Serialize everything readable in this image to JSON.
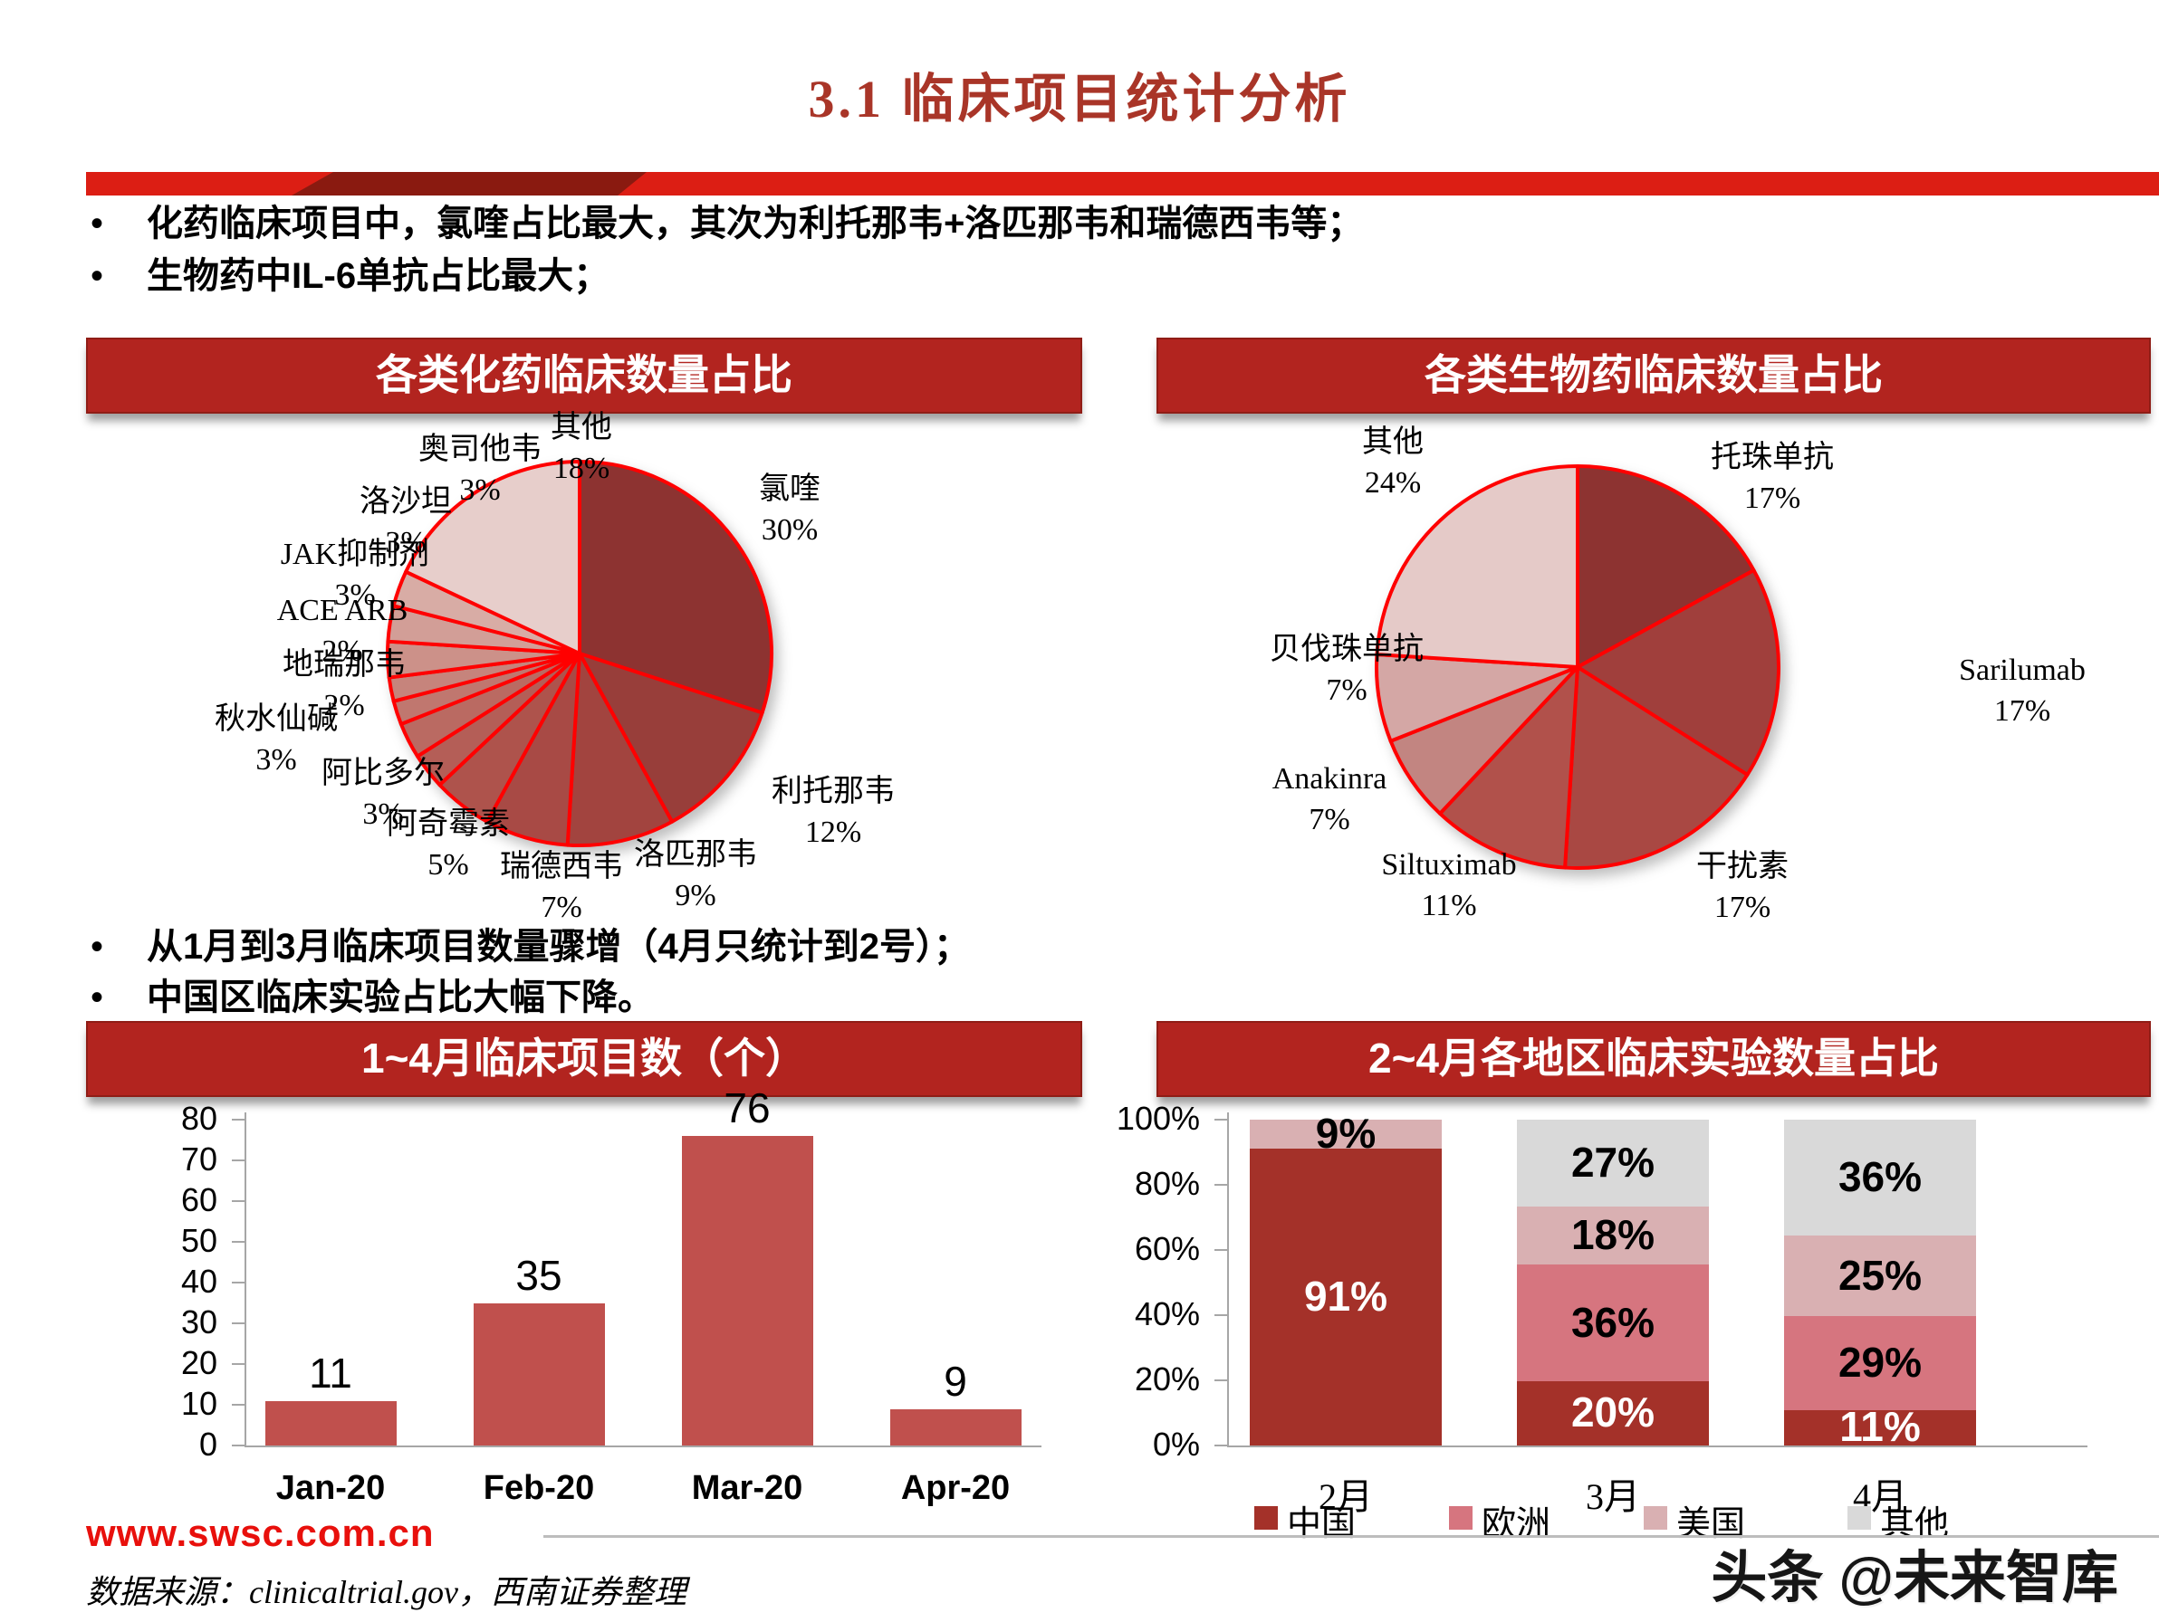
{
  "page": {
    "title": "3.1 临床项目统计分析",
    "bullets_top": [
      "化药临床项目中，氯喹占比最大，其次为利托那韦+洛匹那韦和瑞德西韦等；",
      "生物药中IL-6单抗占比最大；"
    ],
    "bullets_mid": [
      "从1月到3月临床项目数量骤增（4月只统计到2号）；",
      "中国区临床实验占比大幅下降。"
    ]
  },
  "footer": {
    "website": "www.swsc.com.cn",
    "source": "数据来源：clinicaltrial.gov，西南证券整理",
    "watermark": "头条 @未来智库"
  },
  "colors": {
    "title_red": "#A93528",
    "header_red": "#B2241F",
    "header_border": "#8F1D16",
    "divider_bright": "#DC1E14",
    "divider_dark": "#8A1A10",
    "pie_stroke": "#FF0000",
    "footer_red": "#E8100C",
    "axis_gray": "#A6A6A6"
  },
  "chart_data": [
    {
      "id": "chem_pie",
      "type": "pie",
      "title": "各类化药临床数量占比",
      "stroke": "#FF0000",
      "center": [
        640,
        722
      ],
      "radius": 212,
      "start_angle_deg": 0,
      "direction": "clockwise",
      "slices": [
        {
          "label": "氯喹",
          "value": 30,
          "pct": "30%",
          "color": "#8D3331",
          "label_pos": [
            872,
            518
          ]
        },
        {
          "label": "利托那韦",
          "value": 12,
          "pct": "12%",
          "color": "#983E3A",
          "label_pos": [
            920,
            852
          ]
        },
        {
          "label": "洛匹那韦",
          "value": 9,
          "pct": "9%",
          "color": "#A2443F",
          "label_pos": [
            768,
            922
          ]
        },
        {
          "label": "瑞德西韦",
          "value": 7,
          "pct": "7%",
          "color": "#A84A45",
          "label_pos": [
            620,
            935
          ]
        },
        {
          "label": "阿奇霉素",
          "value": 5,
          "pct": "5%",
          "color": "#AE534C",
          "label_pos": [
            495,
            888
          ]
        },
        {
          "label": "阿比多尔",
          "value": 3,
          "pct": "3%",
          "color": "#B45E57",
          "label_pos": [
            423,
            832
          ]
        },
        {
          "label": "秋水仙碱",
          "value": 3,
          "pct": "3%",
          "color": "#BA6A62",
          "label_pos": [
            305,
            772
          ]
        },
        {
          "label": "地瑞那韦",
          "value": 2,
          "pct": "2%",
          "color": "#C0776F",
          "label_pos": [
            380,
            712
          ]
        },
        {
          "label": "ACE ARB",
          "value": 2,
          "pct": "2%",
          "color": "#C6847C",
          "label_pos": [
            378,
            652
          ]
        },
        {
          "label": "JAK抑制剂",
          "value": 3,
          "pct": "3%",
          "color": "#CC9189",
          "label_pos": [
            392,
            590
          ]
        },
        {
          "label": "洛沙坦",
          "value": 3,
          "pct": "3%",
          "color": "#D29E97",
          "label_pos": [
            448,
            532
          ]
        },
        {
          "label": "奥司他韦",
          "value": 3,
          "pct": "3%",
          "color": "#D8ACA5",
          "label_pos": [
            530,
            474
          ]
        },
        {
          "label": "其他",
          "value": 18,
          "pct": "18%",
          "color": "#E7CECB",
          "label_pos": [
            642,
            450
          ]
        }
      ]
    },
    {
      "id": "bio_pie",
      "type": "pie",
      "title": "各类生物药临床数量占比",
      "stroke": "#FF0000",
      "center": [
        1742,
        737
      ],
      "radius": 222,
      "start_angle_deg": 0,
      "direction": "clockwise",
      "slices": [
        {
          "label": "托珠单抗",
          "value": 17,
          "pct": "17%",
          "color": "#8D3331",
          "label_pos": [
            1957,
            483
          ]
        },
        {
          "label": "Sarilumab",
          "value": 17,
          "pct": "17%",
          "color": "#A03F3C",
          "label_pos": [
            2233,
            718
          ]
        },
        {
          "label": "干扰素",
          "value": 17,
          "pct": "17%",
          "color": "#A94843",
          "label_pos": [
            1924,
            935
          ]
        },
        {
          "label": "Siltuximab",
          "value": 11,
          "pct": "11%",
          "color": "#B1514B",
          "label_pos": [
            1600,
            933
          ]
        },
        {
          "label": "Anakinra",
          "value": 7,
          "pct": "7%",
          "color": "#C28581",
          "label_pos": [
            1468,
            838
          ]
        },
        {
          "label": "贝伐珠单抗",
          "value": 7,
          "pct": "7%",
          "color": "#D4A7A5",
          "label_pos": [
            1487,
            695
          ]
        },
        {
          "label": "其他",
          "value": 24,
          "pct": "24%",
          "color": "#E5CAC8",
          "label_pos": [
            1538,
            466
          ]
        }
      ]
    },
    {
      "id": "monthly_bar",
      "type": "bar",
      "title": "1~4月临床项目数（个）",
      "categories": [
        "Jan-20",
        "Feb-20",
        "Mar-20",
        "Apr-20"
      ],
      "values": [
        11,
        35,
        76,
        9
      ],
      "ylim": [
        0,
        80
      ],
      "yticks": [
        0,
        10,
        20,
        30,
        40,
        50,
        60,
        70,
        80
      ],
      "bar_color": "#C0504D",
      "grid": false,
      "value_labels": true
    },
    {
      "id": "region_stack",
      "type": "stacked_bar_percent",
      "title": "2~4月各地区临床实验数量占比",
      "categories": [
        "2月",
        "3月",
        "4月"
      ],
      "yticks": [
        "0%",
        "20%",
        "40%",
        "60%",
        "80%",
        "100%"
      ],
      "legend_position": "bottom",
      "series": [
        {
          "name": "中国",
          "color": "#A43129",
          "values": [
            91,
            20,
            11
          ],
          "label_color": "#FFFFFF"
        },
        {
          "name": "欧洲",
          "color": "#D6757F",
          "values": [
            0,
            36,
            29
          ],
          "label_color": "#000000"
        },
        {
          "name": "美国",
          "color": "#D9B0B2",
          "values": [
            9,
            18,
            25
          ],
          "label_color": "#000000"
        },
        {
          "name": "其他",
          "color": "#D9D9D9",
          "values": [
            0,
            27,
            36
          ],
          "label_color": "#000000"
        }
      ]
    }
  ]
}
